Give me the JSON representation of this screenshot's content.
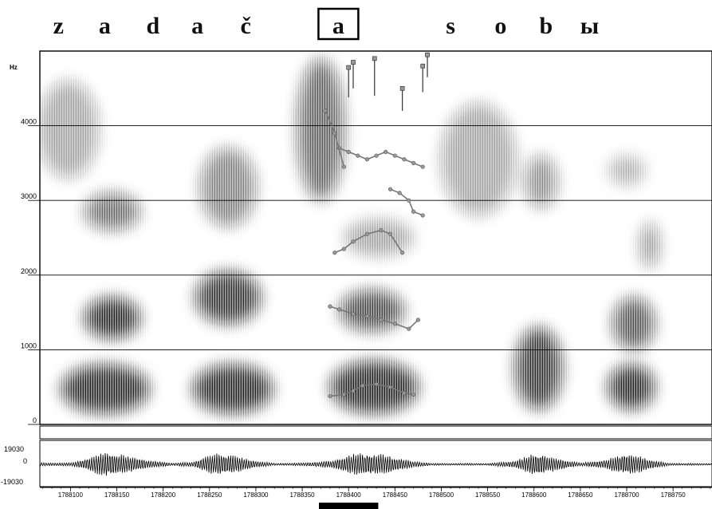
{
  "segments": [
    {
      "letter": "z",
      "t": 1788087
    },
    {
      "letter": "a",
      "t": 1788137
    },
    {
      "letter": "d",
      "t": 1788189
    },
    {
      "letter": "a",
      "t": 1788237
    },
    {
      "letter": "č",
      "t": 1788289
    },
    {
      "letter": "a",
      "t": 1788389,
      "highlighted": true
    },
    {
      "letter": "s",
      "t": 1788510
    },
    {
      "letter": "o",
      "t": 1788564
    },
    {
      "letter": "b",
      "t": 1788613
    },
    {
      "letter": "ы",
      "t": 1788660
    }
  ],
  "chart_data": [
    {
      "type": "heatmap",
      "subtype": "spectrogram",
      "ylabel": "Hz",
      "ylim": [
        0,
        5000
      ],
      "xlim": [
        1788067,
        1788792
      ],
      "y_ticks": [
        0,
        1000,
        2000,
        3000,
        4000
      ],
      "y_tick_labels": [
        "0",
        "1000",
        "2000",
        "3000",
        "4000"
      ],
      "grid": true,
      "colors": {
        "ink": "#111111",
        "overlay": "#777777",
        "overlay_fill": "#999999"
      },
      "energy_regions": [
        {
          "t0": 1788090,
          "t1": 1788185,
          "f0": 150,
          "f1": 800,
          "weight": 1.0
        },
        {
          "t0": 1788115,
          "t1": 1788175,
          "f0": 1150,
          "f1": 1700,
          "weight": 1.0
        },
        {
          "t0": 1788115,
          "t1": 1788175,
          "f0": 2600,
          "f1": 3100,
          "weight": 0.7
        },
        {
          "t0": 1788065,
          "t1": 1788130,
          "f0": 3300,
          "f1": 4600,
          "weight": 0.45
        },
        {
          "t0": 1788232,
          "t1": 1788318,
          "f0": 150,
          "f1": 800,
          "weight": 1.0
        },
        {
          "t0": 1788235,
          "t1": 1788305,
          "f0": 1350,
          "f1": 2050,
          "weight": 0.95
        },
        {
          "t0": 1788240,
          "t1": 1788300,
          "f0": 2650,
          "f1": 3700,
          "weight": 0.6
        },
        {
          "t0": 1788345,
          "t1": 1788395,
          "f0": 3000,
          "f1": 4900,
          "weight": 0.75
        },
        {
          "t0": 1788380,
          "t1": 1788475,
          "f0": 150,
          "f1": 850,
          "weight": 1.0
        },
        {
          "t0": 1788390,
          "t1": 1788460,
          "f0": 1250,
          "f1": 1800,
          "weight": 0.85
        },
        {
          "t0": 1788395,
          "t1": 1788470,
          "f0": 2250,
          "f1": 2750,
          "weight": 0.4
        },
        {
          "t0": 1788500,
          "t1": 1788580,
          "f0": 2800,
          "f1": 4300,
          "weight": 0.45
        },
        {
          "t0": 1788580,
          "t1": 1788630,
          "f0": 200,
          "f1": 1300,
          "weight": 0.95
        },
        {
          "t0": 1788590,
          "t1": 1788625,
          "f0": 2900,
          "f1": 3600,
          "weight": 0.55
        },
        {
          "t0": 1788680,
          "t1": 1788730,
          "f0": 200,
          "f1": 800,
          "weight": 1.0
        },
        {
          "t0": 1788685,
          "t1": 1788730,
          "f0": 1000,
          "f1": 1700,
          "weight": 0.8
        },
        {
          "t0": 1788715,
          "t1": 1788735,
          "f0": 2100,
          "f1": 2700,
          "weight": 0.55
        },
        {
          "t0": 1788680,
          "t1": 1788720,
          "f0": 3200,
          "f1": 3600,
          "weight": 0.35
        }
      ],
      "formant_tracks": [
        {
          "t": [
            1788380,
            1788395,
            1788405,
            1788415,
            1788430,
            1788445,
            1788460,
            1788470
          ],
          "f": [
            380,
            400,
            450,
            520,
            540,
            500,
            420,
            400
          ]
        },
        {
          "t": [
            1788380,
            1788390,
            1788405,
            1788420,
            1788435,
            1788450,
            1788465,
            1788475
          ],
          "f": [
            1580,
            1540,
            1480,
            1450,
            1400,
            1350,
            1280,
            1400
          ]
        },
        {
          "t": [
            1788385,
            1788395,
            1788405,
            1788420,
            1788435,
            1788445,
            1788458
          ],
          "f": [
            2300,
            2350,
            2450,
            2550,
            2600,
            2550,
            2300
          ]
        },
        {
          "t": [
            1788390,
            1788400,
            1788410,
            1788420,
            1788430,
            1788440,
            1788450,
            1788460,
            1788470,
            1788480
          ],
          "f": [
            3700,
            3650,
            3600,
            3550,
            3600,
            3650,
            3600,
            3550,
            3500,
            3450
          ]
        },
        {
          "t": [
            1788445,
            1788455,
            1788465,
            1788470,
            1788480
          ],
          "f": [
            3150,
            3100,
            3000,
            2850,
            2800
          ]
        },
        {
          "t": [
            1788375,
            1788385,
            1788395
          ],
          "f": [
            4200,
            3900,
            3450
          ]
        }
      ],
      "pitch_marks": [
        {
          "t": 1788400,
          "f": 4780,
          "drop": 400
        },
        {
          "t": 1788405,
          "f": 4850,
          "drop": 350
        },
        {
          "t": 1788428,
          "f": 4900,
          "drop": 500
        },
        {
          "t": 1788458,
          "f": 4500,
          "drop": 300
        },
        {
          "t": 1788480,
          "f": 4800,
          "drop": 350
        },
        {
          "t": 1788485,
          "f": 4950,
          "drop": 300
        }
      ]
    },
    {
      "type": "line",
      "subtype": "waveform",
      "ylim": [
        -19030,
        19030
      ],
      "y_ticks": [
        19030,
        0,
        -19030
      ],
      "y_tick_labels": [
        "19030",
        "0",
        "-19030"
      ],
      "xlim": [
        1788067,
        1788792
      ],
      "x_ticks": [
        1788100,
        1788150,
        1788200,
        1788250,
        1788300,
        1788350,
        1788400,
        1788450,
        1788500,
        1788550,
        1788600,
        1788650,
        1788700,
        1788750
      ],
      "x_tick_labels": [
        "1788100",
        "1788150",
        "1788200",
        "1788250",
        "1788300",
        "1788350",
        "1788400",
        "1788450",
        "1788500",
        "1788550",
        "1788600",
        "1788650",
        "1788700",
        "1788750"
      ],
      "envelope": [
        {
          "t": 1788067,
          "a": 1500
        },
        {
          "t": 1788100,
          "a": 1500
        },
        {
          "t": 1788115,
          "a": 5000
        },
        {
          "t": 1788138,
          "a": 12500
        },
        {
          "t": 1788160,
          "a": 9000
        },
        {
          "t": 1788185,
          "a": 4000
        },
        {
          "t": 1788210,
          "a": 1200
        },
        {
          "t": 1788232,
          "a": 2500
        },
        {
          "t": 1788255,
          "a": 11000
        },
        {
          "t": 1788275,
          "a": 9500
        },
        {
          "t": 1788300,
          "a": 3500
        },
        {
          "t": 1788320,
          "a": 1000
        },
        {
          "t": 1788350,
          "a": 1400
        },
        {
          "t": 1788380,
          "a": 3500
        },
        {
          "t": 1788410,
          "a": 11500
        },
        {
          "t": 1788440,
          "a": 9500
        },
        {
          "t": 1788470,
          "a": 3000
        },
        {
          "t": 1788490,
          "a": 1000
        },
        {
          "t": 1788550,
          "a": 1000
        },
        {
          "t": 1788580,
          "a": 3500
        },
        {
          "t": 1788600,
          "a": 12000
        },
        {
          "t": 1788625,
          "a": 6000
        },
        {
          "t": 1788650,
          "a": 1500
        },
        {
          "t": 1788675,
          "a": 4000
        },
        {
          "t": 1788700,
          "a": 11500
        },
        {
          "t": 1788725,
          "a": 5000
        },
        {
          "t": 1788745,
          "a": 1200
        },
        {
          "t": 1788792,
          "a": 800
        }
      ],
      "selection": {
        "t0": 1788368,
        "t1": 1788432
      }
    }
  ]
}
